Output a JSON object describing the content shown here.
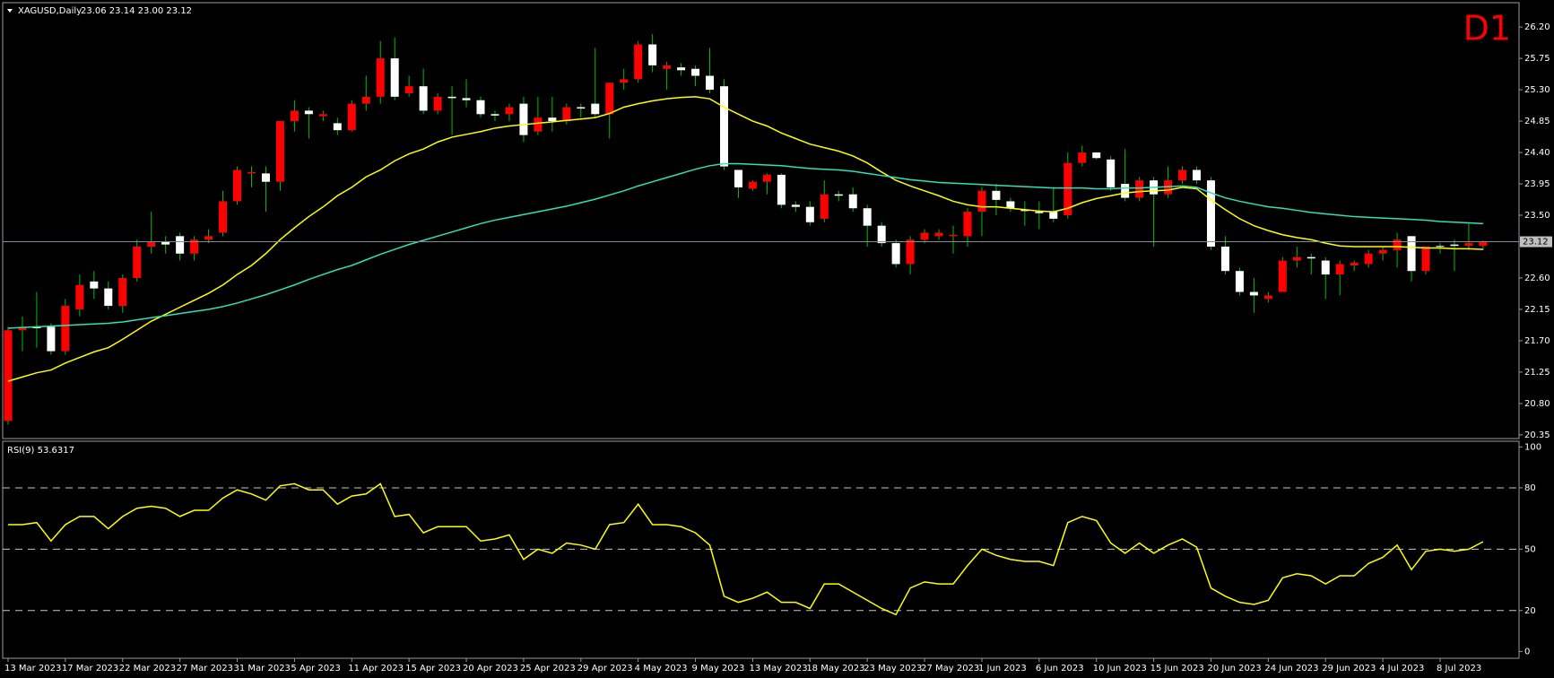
{
  "chart_data": [
    {
      "type": "candlestick",
      "title": "XAGUSD,Daily",
      "quote": "23.06 23.14 23.00 23.12",
      "timeframe": "D1",
      "categories": [
        "13 Mar 2023",
        null,
        null,
        null,
        "17 Mar 2023",
        null,
        null,
        null,
        "22 Mar 2023",
        null,
        null,
        null,
        "27 Mar 2023",
        null,
        null,
        null,
        "31 Mar 2023",
        null,
        null,
        null,
        "5 Apr 2023",
        null,
        null,
        null,
        "11 Apr 2023",
        null,
        null,
        null,
        "15 Apr 2023",
        null,
        null,
        null,
        "20 Apr 2023",
        null,
        null,
        null,
        "25 Apr 2023",
        null,
        null,
        null,
        "29 Apr 2023",
        null,
        null,
        null,
        "4 May 2023",
        null,
        null,
        null,
        "9 May 2023",
        null,
        null,
        null,
        "13 May 2023",
        null,
        null,
        null,
        "18 May 2023",
        null,
        null,
        null,
        "23 May 2023",
        null,
        null,
        null,
        "27 May 2023",
        null,
        null,
        null,
        "1 Jun 2023",
        null,
        null,
        null,
        "6 Jun 2023",
        null,
        null,
        null,
        "10 Jun 2023",
        null,
        null,
        null,
        "15 Jun 2023",
        null,
        null,
        null,
        "20 Jun 2023",
        null,
        null,
        null,
        "24 Jun 2023",
        null,
        null,
        null,
        "29 Jun 2023",
        null,
        null,
        null,
        "4 Jul 2023",
        null,
        null,
        null,
        "8 Jul 2023",
        null,
        null,
        null
      ],
      "open": [
        20.55,
        21.85,
        21.9,
        21.9,
        21.55,
        22.15,
        22.55,
        22.45,
        22.2,
        22.6,
        23.05,
        23.12,
        23.2,
        22.95,
        23.15,
        23.25,
        23.7,
        24.1,
        24.1,
        23.98,
        24.85,
        25.0,
        24.92,
        24.82,
        24.72,
        25.1,
        25.2,
        25.75,
        25.25,
        25.35,
        25.0,
        25.2,
        25.18,
        25.15,
        24.95,
        24.95,
        25.1,
        24.7,
        24.9,
        24.85,
        25.05,
        25.1,
        24.95,
        25.4,
        25.45,
        25.95,
        25.6,
        25.62,
        25.6,
        25.5,
        25.35,
        24.15,
        23.88,
        23.98,
        24.08,
        23.65,
        23.62,
        23.45,
        23.8,
        23.8,
        23.6,
        23.35,
        23.1,
        22.8,
        23.15,
        23.2,
        23.2,
        23.2,
        23.55,
        23.85,
        23.7,
        23.58,
        23.55,
        23.55,
        23.5,
        24.25,
        24.4,
        24.3,
        23.95,
        23.75,
        24.0,
        23.8,
        24.0,
        24.15,
        24.0,
        23.05,
        22.7,
        22.4,
        22.3,
        22.4,
        22.85,
        22.9,
        22.85,
        22.65,
        22.78,
        22.8,
        22.95,
        23.0,
        23.2,
        22.7,
        23.06,
        23.08,
        23.06,
        23.06
      ],
      "high": [
        21.9,
        22.05,
        22.4,
        21.95,
        22.3,
        22.65,
        22.7,
        22.55,
        22.65,
        23.15,
        23.55,
        23.2,
        23.25,
        23.2,
        23.3,
        23.85,
        24.2,
        24.2,
        24.2,
        24.85,
        25.15,
        25.05,
        25.0,
        24.9,
        25.15,
        25.5,
        26.0,
        26.05,
        25.5,
        25.6,
        25.25,
        25.35,
        25.45,
        25.2,
        25.0,
        25.1,
        25.2,
        25.2,
        25.2,
        25.1,
        25.1,
        25.9,
        25.4,
        25.6,
        26.0,
        26.1,
        25.7,
        25.68,
        25.65,
        25.9,
        25.45,
        24.15,
        24.0,
        24.1,
        24.1,
        23.7,
        23.7,
        24.0,
        23.85,
        23.9,
        23.65,
        23.4,
        23.15,
        23.2,
        23.3,
        23.3,
        23.35,
        23.6,
        23.9,
        23.95,
        23.75,
        23.7,
        23.7,
        23.9,
        24.4,
        24.5,
        24.4,
        24.35,
        24.45,
        24.05,
        24.05,
        24.2,
        24.2,
        24.2,
        24.05,
        23.2,
        22.75,
        22.6,
        22.4,
        22.9,
        23.05,
        22.95,
        22.9,
        22.85,
        22.85,
        23.0,
        23.05,
        23.25,
        23.2,
        23.05,
        23.1,
        23.15,
        23.4,
        23.14
      ],
      "low": [
        20.5,
        21.55,
        21.6,
        21.5,
        21.5,
        22.05,
        22.3,
        22.15,
        22.1,
        22.55,
        22.95,
        22.95,
        22.85,
        22.85,
        23.1,
        23.2,
        23.65,
        23.9,
        23.55,
        23.85,
        24.7,
        24.6,
        24.85,
        24.65,
        24.7,
        25.0,
        25.1,
        25.15,
        25.2,
        24.95,
        24.95,
        24.65,
        25.05,
        24.9,
        24.85,
        24.85,
        24.55,
        24.65,
        24.7,
        24.8,
        24.9,
        24.9,
        24.6,
        25.3,
        25.4,
        25.55,
        25.3,
        25.5,
        25.35,
        25.25,
        24.15,
        23.75,
        23.85,
        23.8,
        23.6,
        23.55,
        23.35,
        23.4,
        23.7,
        23.55,
        23.05,
        23.05,
        22.75,
        22.65,
        23.1,
        23.15,
        22.95,
        23.05,
        23.2,
        23.5,
        23.55,
        23.35,
        23.3,
        23.4,
        23.45,
        24.2,
        24.3,
        23.85,
        23.7,
        23.7,
        23.05,
        23.75,
        23.95,
        23.95,
        23.0,
        22.65,
        22.35,
        22.1,
        22.25,
        22.4,
        22.75,
        22.65,
        22.3,
        22.35,
        22.7,
        22.75,
        22.85,
        22.75,
        22.55,
        22.65,
        22.95,
        22.7,
        23.0,
        23.0
      ],
      "close": [
        21.85,
        21.9,
        21.88,
        21.55,
        22.2,
        22.5,
        22.45,
        22.2,
        22.6,
        23.05,
        23.12,
        23.08,
        22.95,
        23.15,
        23.2,
        23.7,
        24.15,
        24.12,
        23.98,
        24.85,
        25.0,
        24.95,
        24.95,
        24.72,
        25.1,
        25.2,
        25.75,
        25.2,
        25.35,
        25.0,
        25.2,
        25.18,
        25.15,
        24.95,
        24.93,
        25.05,
        24.65,
        24.9,
        24.85,
        25.05,
        25.03,
        24.95,
        25.4,
        25.45,
        25.95,
        25.65,
        25.65,
        25.58,
        25.5,
        25.3,
        24.2,
        23.9,
        23.98,
        24.08,
        23.65,
        23.62,
        23.4,
        23.8,
        23.78,
        23.6,
        23.35,
        23.1,
        22.8,
        23.15,
        23.25,
        23.25,
        23.22,
        23.55,
        23.85,
        23.72,
        23.6,
        23.56,
        23.53,
        23.45,
        24.25,
        24.4,
        24.32,
        23.9,
        23.75,
        24.0,
        23.8,
        24.0,
        24.15,
        24.0,
        23.05,
        22.7,
        22.4,
        22.35,
        22.35,
        22.85,
        22.9,
        22.88,
        22.65,
        22.8,
        22.82,
        22.95,
        23.0,
        23.15,
        22.7,
        23.05,
        23.05,
        23.06,
        23.1,
        23.12
      ],
      "up_color": "#ff0000",
      "down_color": "#ffffff",
      "wick_color": "#00c000",
      "series": [
        {
          "color": "#ffff00",
          "values": [
            21.12,
            21.18,
            21.24,
            21.28,
            21.38,
            21.46,
            21.54,
            21.6,
            21.72,
            21.85,
            21.98,
            22.08,
            22.18,
            22.28,
            22.38,
            22.5,
            22.65,
            22.78,
            22.95,
            23.15,
            23.32,
            23.48,
            23.62,
            23.78,
            23.9,
            24.05,
            24.15,
            24.28,
            24.38,
            24.45,
            24.55,
            24.62,
            24.66,
            24.7,
            24.75,
            24.78,
            24.8,
            24.82,
            24.84,
            24.86,
            24.88,
            24.9,
            24.96,
            25.05,
            25.1,
            25.14,
            25.17,
            25.19,
            25.2,
            25.17,
            25.05,
            24.95,
            24.85,
            24.78,
            24.68,
            24.6,
            24.52,
            24.47,
            24.42,
            24.35,
            24.25,
            24.12,
            24.0,
            23.92,
            23.85,
            23.78,
            23.7,
            23.65,
            23.62,
            23.62,
            23.6,
            23.58,
            23.56,
            23.55,
            23.6,
            23.68,
            23.74,
            23.78,
            23.82,
            23.84,
            23.85,
            23.86,
            23.9,
            23.88,
            23.72,
            23.58,
            23.45,
            23.35,
            23.28,
            23.22,
            23.18,
            23.15,
            23.1,
            23.06,
            23.05,
            23.05,
            23.05,
            23.05,
            23.04,
            23.03,
            23.03,
            23.02,
            23.02,
            23.01
          ]
        },
        {
          "color": "#30e0b8",
          "values": [
            21.88,
            21.89,
            21.9,
            21.91,
            21.92,
            21.93,
            21.94,
            21.95,
            21.97,
            22.0,
            22.03,
            22.06,
            22.09,
            22.12,
            22.15,
            22.19,
            22.24,
            22.3,
            22.36,
            22.43,
            22.5,
            22.58,
            22.65,
            22.72,
            22.78,
            22.86,
            22.94,
            23.01,
            23.08,
            23.14,
            23.2,
            23.26,
            23.32,
            23.38,
            23.43,
            23.47,
            23.51,
            23.55,
            23.59,
            23.63,
            23.68,
            23.73,
            23.79,
            23.85,
            23.92,
            23.98,
            24.04,
            24.1,
            24.16,
            24.21,
            24.24,
            24.24,
            24.23,
            24.22,
            24.21,
            24.19,
            24.17,
            24.16,
            24.15,
            24.13,
            24.1,
            24.07,
            24.04,
            24.01,
            23.99,
            23.97,
            23.96,
            23.95,
            23.94,
            23.93,
            23.92,
            23.91,
            23.9,
            23.89,
            23.89,
            23.89,
            23.88,
            23.88,
            23.89,
            23.89,
            23.9,
            23.91,
            23.92,
            23.9,
            23.82,
            23.75,
            23.7,
            23.66,
            23.62,
            23.6,
            23.57,
            23.54,
            23.52,
            23.5,
            23.48,
            23.47,
            23.46,
            23.45,
            23.44,
            23.43,
            23.41,
            23.4,
            23.39,
            23.38
          ]
        }
      ],
      "last_price": {
        "value": 23.12,
        "label": "23.12"
      },
      "ylim": [
        20.31,
        26.51
      ],
      "yticks": [
        {
          "value": 20.35,
          "label": "20.35"
        },
        {
          "value": 20.8,
          "label": "20.80"
        },
        {
          "value": 21.25,
          "label": "21.25"
        },
        {
          "value": 21.7,
          "label": "21.70"
        },
        {
          "value": 22.15,
          "label": "22.15"
        },
        {
          "value": 22.6,
          "label": "22.60"
        },
        {
          "value": 23.5,
          "label": "23.50"
        },
        {
          "value": 23.95,
          "label": "23.95"
        },
        {
          "value": 24.4,
          "label": "24.40"
        },
        {
          "value": 24.85,
          "label": "24.85"
        },
        {
          "value": 25.3,
          "label": "25.30"
        },
        {
          "value": 25.75,
          "label": "25.75"
        },
        {
          "value": 26.2,
          "label": "26.20"
        }
      ]
    },
    {
      "type": "line",
      "title": "RSI(9) 53.6317",
      "color": "#ffff00",
      "values": [
        62,
        62,
        63,
        54,
        62,
        66,
        66,
        60,
        66,
        70,
        71,
        70,
        66,
        69,
        69,
        75,
        79,
        77,
        74,
        81,
        82,
        79,
        79,
        72,
        76,
        77,
        82,
        66,
        67,
        58,
        61,
        61,
        61,
        54,
        55,
        57,
        45,
        50,
        48,
        53,
        52,
        50,
        62,
        63,
        72,
        62,
        62,
        61,
        58,
        52,
        27,
        24,
        26,
        29,
        24,
        24,
        21,
        33,
        33,
        29,
        25,
        21,
        18,
        31,
        34,
        33,
        33,
        42,
        50,
        47,
        45,
        44,
        44,
        42,
        63,
        66,
        64,
        53,
        48,
        53,
        48,
        52,
        55,
        51,
        31,
        27,
        24,
        23,
        25,
        36,
        38,
        37,
        33,
        37,
        37,
        43,
        46,
        52,
        40,
        49,
        50,
        49,
        50,
        53.6317
      ],
      "levels": [
        20,
        50,
        80
      ],
      "level_color": "#c8c8c8",
      "ylim": [
        -2.9,
        101.9
      ],
      "yticks": [
        0,
        20,
        50,
        80,
        100
      ]
    }
  ]
}
